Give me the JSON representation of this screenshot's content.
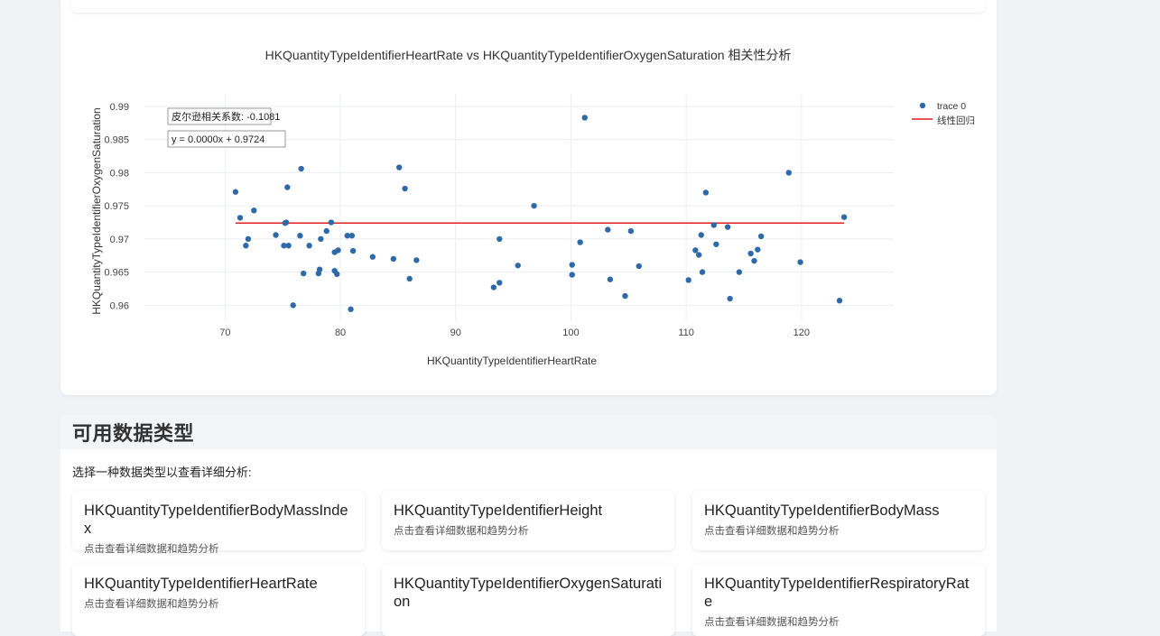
{
  "chart_data": {
    "type": "scatter",
    "title": "HKQuantityTypeIdentifierHeartRate vs HKQuantityTypeIdentifierOxygenSaturation 相关性分析",
    "xlabel": "HKQuantityTypeIdentifierHeartRate",
    "ylabel": "HKQuantityTypeIdentifierOxygenSaturation",
    "xlim": [
      63,
      128
    ],
    "ylim": [
      0.9576,
      0.9919
    ],
    "xticks": [
      70,
      80,
      90,
      100,
      110,
      120
    ],
    "yticks": [
      0.96,
      0.965,
      0.97,
      0.975,
      0.98,
      0.985,
      0.99
    ],
    "ytick_labels": [
      "0.96",
      "0.965",
      "0.97",
      "0.975",
      "0.98",
      "0.985",
      "0.99"
    ],
    "grid": true,
    "legend_position": "top-right",
    "colors": {
      "points": "#2e6aa8",
      "regression": "#e02020",
      "grid": "#ebeef2"
    },
    "series": [
      {
        "name": "trace 0",
        "mode": "markers",
        "points": [
          [
            70.9,
            0.9771
          ],
          [
            71.3,
            0.9732
          ],
          [
            71.8,
            0.969
          ],
          [
            72.0,
            0.97
          ],
          [
            72.5,
            0.9743
          ],
          [
            74.4,
            0.9706
          ],
          [
            75.1,
            0.969
          ],
          [
            75.2,
            0.9724
          ],
          [
            75.3,
            0.9725
          ],
          [
            75.4,
            0.9778
          ],
          [
            75.5,
            0.969
          ],
          [
            75.9,
            0.96
          ],
          [
            76.5,
            0.9705
          ],
          [
            76.6,
            0.9806
          ],
          [
            76.8,
            0.9648
          ],
          [
            77.3,
            0.969
          ],
          [
            78.1,
            0.9648
          ],
          [
            78.2,
            0.9654
          ],
          [
            78.3,
            0.97
          ],
          [
            78.8,
            0.9712
          ],
          [
            79.2,
            0.9725
          ],
          [
            79.5,
            0.968
          ],
          [
            79.5,
            0.9652
          ],
          [
            79.7,
            0.9647
          ],
          [
            79.8,
            0.9683
          ],
          [
            80.6,
            0.9705
          ],
          [
            80.9,
            0.9594
          ],
          [
            81.0,
            0.9705
          ],
          [
            81.1,
            0.9682
          ],
          [
            82.8,
            0.9673
          ],
          [
            84.6,
            0.967
          ],
          [
            85.1,
            0.9808
          ],
          [
            85.6,
            0.9776
          ],
          [
            86.0,
            0.964
          ],
          [
            86.6,
            0.9668
          ],
          [
            93.3,
            0.9627
          ],
          [
            93.8,
            0.9634
          ],
          [
            93.8,
            0.97
          ],
          [
            95.4,
            0.966
          ],
          [
            96.8,
            0.975
          ],
          [
            100.1,
            0.9661
          ],
          [
            100.1,
            0.9646
          ],
          [
            100.8,
            0.9695
          ],
          [
            101.2,
            0.9883
          ],
          [
            103.2,
            0.9714
          ],
          [
            103.4,
            0.9639
          ],
          [
            104.7,
            0.9614
          ],
          [
            105.2,
            0.9712
          ],
          [
            105.9,
            0.9659
          ],
          [
            110.2,
            0.9638
          ],
          [
            110.8,
            0.9683
          ],
          [
            111.1,
            0.9676
          ],
          [
            111.3,
            0.9706
          ],
          [
            111.4,
            0.965
          ],
          [
            111.7,
            0.977
          ],
          [
            112.4,
            0.9721
          ],
          [
            112.6,
            0.9692
          ],
          [
            113.6,
            0.9718
          ],
          [
            113.8,
            0.961
          ],
          [
            114.6,
            0.965
          ],
          [
            115.6,
            0.9678
          ],
          [
            115.9,
            0.9667
          ],
          [
            116.2,
            0.9684
          ],
          [
            116.5,
            0.9704
          ],
          [
            118.9,
            0.98
          ],
          [
            119.9,
            0.9665
          ],
          [
            123.3,
            0.9607
          ],
          [
            123.7,
            0.9733
          ]
        ]
      },
      {
        "name": "线性回归",
        "mode": "lines",
        "x": [
          70.9,
          123.7
        ],
        "y": [
          0.9724,
          0.9724
        ]
      }
    ],
    "annotations": [
      "皮尔逊相关系数: -0.1081",
      "y = 0.0000x + 0.9724"
    ]
  },
  "section": {
    "title": "可用数据类型",
    "description": "选择一种数据类型以查看详细分析:",
    "cards": [
      {
        "name": "HKQuantityTypeIdentifierBodyMassIndex",
        "desc": "点击查看详细数据和趋势分析"
      },
      {
        "name": "HKQuantityTypeIdentifierHeight",
        "desc": "点击查看详细数据和趋势分析"
      },
      {
        "name": "HKQuantityTypeIdentifierBodyMass",
        "desc": "点击查看详细数据和趋势分析"
      },
      {
        "name": "HKQuantityTypeIdentifierHeartRate",
        "desc": "点击查看详细数据和趋势分析"
      },
      {
        "name": "HKQuantityTypeIdentifierOxygenSaturation",
        "desc": ""
      },
      {
        "name": "HKQuantityTypeIdentifierRespiratoryRate",
        "desc": "点击查看详细数据和趋势分析"
      }
    ]
  }
}
